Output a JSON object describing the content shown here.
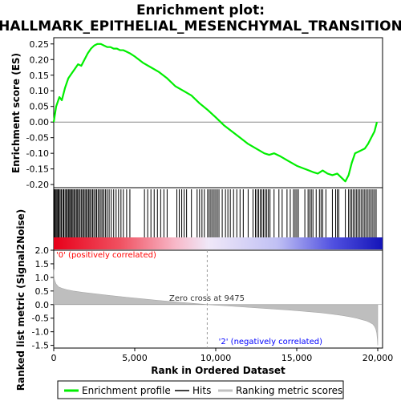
{
  "title_line1": "Enrichment plot:",
  "title_line2": "HALLMARK_EPITHELIAL_MESENCHYMAL_TRANSITION",
  "es_ylabel": "Enrichment score (ES)",
  "metric_ylabel": "Ranked list metric (Signal2Noise)",
  "xlabel": "Rank in Ordered Dataset",
  "pos_label": "'0' (positively correlated)",
  "neg_label": "'2' (negatively correlated)",
  "zero_cross_label": "Zero cross at 9475",
  "legend": {
    "profile": "Enrichment profile",
    "hits": "Hits",
    "metric": "Ranking metric scores"
  },
  "colors": {
    "profile": "#00ee00",
    "hits": "#000000",
    "metric_fill": "#bebebe",
    "pos_label": "#ff0000",
    "neg_label": "#0000ff"
  },
  "chart_data": {
    "type": "line",
    "x_range": [
      0,
      20000
    ],
    "x_ticks": [
      0,
      5000,
      10000,
      15000,
      20000
    ],
    "x_tick_labels": [
      "0",
      "5,000",
      "10,000",
      "15,000",
      "20,000"
    ],
    "es_ylim": [
      -0.21,
      0.27
    ],
    "es_ticks": [
      0.25,
      0.2,
      0.15,
      0.1,
      0.05,
      0.0,
      -0.05,
      -0.1,
      -0.15,
      -0.2
    ],
    "es_tick_labels": [
      "0.25",
      "0.20",
      "0.15",
      "0.10",
      "0.05",
      "0.00",
      "-0.05",
      "-0.10",
      "-0.15",
      "-0.20"
    ],
    "metric_ylim": [
      -1.6,
      2.0
    ],
    "metric_ticks": [
      2.0,
      1.5,
      1.0,
      0.5,
      0.0,
      -0.5,
      -1.0,
      -1.5
    ],
    "metric_tick_labels": [
      "2.0",
      "1.5",
      "1.0",
      "0.5",
      "0.0",
      "-0.5",
      "-1.0",
      "-1.5"
    ],
    "zero_cross": 9475,
    "series": [
      {
        "name": "Enrichment profile",
        "x": [
          0,
          150,
          350,
          500,
          700,
          900,
          1100,
          1300,
          1500,
          1700,
          1900,
          2100,
          2300,
          2500,
          2700,
          2900,
          3100,
          3300,
          3500,
          3700,
          3900,
          4100,
          4300,
          4500,
          4700,
          5000,
          5500,
          6000,
          6500,
          7000,
          7500,
          8000,
          8500,
          9000,
          9475,
          10000,
          10500,
          11000,
          11500,
          12000,
          12500,
          13000,
          13300,
          13600,
          14000,
          14500,
          15000,
          15500,
          16000,
          16300,
          16600,
          16900,
          17200,
          17500,
          17800,
          18000,
          18200,
          18400,
          18600,
          18800,
          19000,
          19200,
          19400,
          19600,
          19800,
          19950
        ],
        "values": [
          0.0,
          0.05,
          0.08,
          0.07,
          0.11,
          0.14,
          0.155,
          0.17,
          0.185,
          0.18,
          0.2,
          0.22,
          0.235,
          0.245,
          0.25,
          0.25,
          0.245,
          0.24,
          0.24,
          0.235,
          0.235,
          0.23,
          0.23,
          0.225,
          0.22,
          0.21,
          0.19,
          0.175,
          0.16,
          0.14,
          0.115,
          0.1,
          0.085,
          0.06,
          0.04,
          0.015,
          -0.01,
          -0.03,
          -0.05,
          -0.07,
          -0.085,
          -0.1,
          -0.105,
          -0.1,
          -0.11,
          -0.125,
          -0.14,
          -0.15,
          -0.16,
          -0.165,
          -0.155,
          -0.165,
          -0.17,
          -0.165,
          -0.18,
          -0.19,
          -0.17,
          -0.13,
          -0.1,
          -0.095,
          -0.09,
          -0.085,
          -0.07,
          -0.05,
          -0.03,
          0.0
        ]
      },
      {
        "name": "Ranking metric scores",
        "x": [
          0,
          30,
          80,
          150,
          300,
          500,
          800,
          1200,
          1800,
          2500,
          3500,
          4500,
          5500,
          6500,
          7500,
          8500,
          9475,
          10500,
          11500,
          12500,
          13500,
          14500,
          15500,
          16500,
          17200,
          17800,
          18300,
          18700,
          19000,
          19300,
          19500,
          19700,
          19800,
          19880,
          19940,
          19980,
          20000
        ],
        "values": [
          1.3,
          0.95,
          0.85,
          0.75,
          0.65,
          0.6,
          0.55,
          0.5,
          0.45,
          0.4,
          0.33,
          0.27,
          0.21,
          0.15,
          0.1,
          0.05,
          0.0,
          -0.04,
          -0.08,
          -0.12,
          -0.16,
          -0.2,
          -0.25,
          -0.3,
          -0.35,
          -0.4,
          -0.45,
          -0.5,
          -0.55,
          -0.6,
          -0.65,
          -0.72,
          -0.8,
          -0.9,
          -1.05,
          -1.3,
          -1.5
        ]
      }
    ],
    "hit_positions": [
      40,
      90,
      150,
      210,
      270,
      330,
      400,
      470,
      560,
      620,
      700,
      770,
      840,
      910,
      980,
      1040,
      1110,
      1180,
      1250,
      1320,
      1400,
      1470,
      1540,
      1620,
      1700,
      1780,
      1850,
      1930,
      2000,
      2080,
      2160,
      2230,
      2310,
      2400,
      2480,
      2570,
      2650,
      2740,
      2830,
      2920,
      3010,
      3100,
      3200,
      3300,
      3420,
      3550,
      3700,
      3850,
      4000,
      4150,
      4300,
      4500,
      4700,
      5600,
      5800,
      6000,
      6200,
      6400,
      6600,
      6800,
      7000,
      7600,
      7750,
      7900,
      8050,
      8200,
      8500,
      8850,
      9000,
      9150,
      9300,
      9500,
      9600,
      9700,
      9800,
      9900,
      10000,
      10100,
      10200,
      10400,
      10600,
      10750,
      10900,
      11100,
      11300,
      11500,
      11700,
      12000,
      12300,
      12450,
      12550,
      12650,
      12750,
      12850,
      12950,
      13050,
      13150,
      13250,
      13350,
      13600,
      13900,
      14100,
      14400,
      14600,
      14800,
      14900,
      15000,
      15100,
      15500,
      15700,
      15800,
      15900,
      16000,
      16200,
      16400,
      16500,
      16600,
      16800,
      17200,
      17400,
      17500,
      17600,
      18000,
      18200,
      18300,
      18400,
      18500,
      18600,
      18700,
      18800,
      18900,
      19000,
      19100,
      19200,
      19300,
      19400,
      19500,
      19600,
      19700,
      19800,
      19900
    ]
  }
}
